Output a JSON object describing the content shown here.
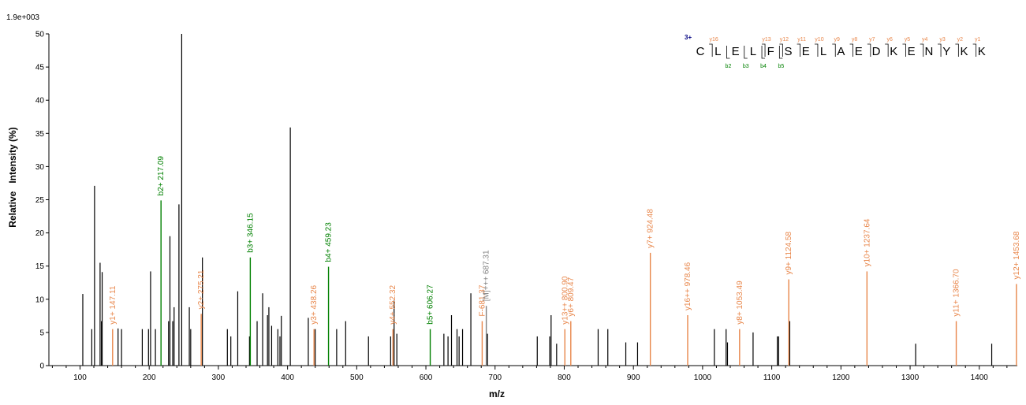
{
  "chart_data": {
    "type": "bar",
    "top_left_label": "1.9e+003",
    "xlabel": "m/z",
    "ylabel": "Relative   Intensity (%)",
    "xlim": [
      55,
      1455
    ],
    "ylim": [
      0,
      50
    ],
    "x_ticks": [
      100,
      200,
      300,
      400,
      500,
      600,
      700,
      800,
      900,
      1000,
      1100,
      1200,
      1300,
      1400
    ],
    "y_ticks": [
      0,
      5,
      10,
      15,
      20,
      25,
      30,
      35,
      40,
      45,
      50
    ],
    "colors": {
      "y_ion": "#e8864a",
      "b_ion": "#008000",
      "other": "#000000",
      "precursor": "#808080"
    },
    "unlabeled_peaks": [
      [
        104,
        10.8
      ],
      [
        117,
        5.5
      ],
      [
        121,
        27.1
      ],
      [
        129,
        15.5
      ],
      [
        131,
        6.7
      ],
      [
        132,
        14.1
      ],
      [
        155,
        5.6
      ],
      [
        160,
        5.5
      ],
      [
        190,
        5.5
      ],
      [
        199,
        5.5
      ],
      [
        202,
        14.2
      ],
      [
        209,
        5.5
      ],
      [
        228,
        6.7
      ],
      [
        230,
        19.5
      ],
      [
        234,
        6.7
      ],
      [
        236,
        8.8
      ],
      [
        243,
        24.3
      ],
      [
        247,
        50.0
      ],
      [
        258,
        8.8
      ],
      [
        260,
        5.5
      ],
      [
        313,
        5.5
      ],
      [
        318,
        4.4
      ],
      [
        328,
        11.2
      ],
      [
        345,
        4.4
      ],
      [
        356,
        6.7
      ],
      [
        364,
        10.9
      ],
      [
        371,
        7.6
      ],
      [
        373,
        8.8
      ],
      [
        377,
        6.0
      ],
      [
        386,
        5.5
      ],
      [
        389,
        4.4
      ],
      [
        391,
        7.5
      ],
      [
        404,
        35.9
      ],
      [
        430,
        7.2
      ],
      [
        440,
        5.5
      ],
      [
        471,
        5.5
      ],
      [
        484,
        6.7
      ],
      [
        517,
        4.4
      ],
      [
        549,
        4.4
      ],
      [
        558,
        4.8
      ],
      [
        626,
        4.8
      ],
      [
        632,
        4.4
      ],
      [
        637,
        7.6
      ],
      [
        645,
        5.5
      ],
      [
        648,
        4.4
      ],
      [
        653,
        5.5
      ],
      [
        665,
        10.9
      ],
      [
        689,
        4.8
      ],
      [
        761,
        4.4
      ],
      [
        779,
        4.4
      ],
      [
        781,
        7.6
      ],
      [
        789,
        3.3
      ],
      [
        849,
        5.5
      ],
      [
        863,
        5.5
      ],
      [
        889,
        3.5
      ],
      [
        906,
        3.5
      ],
      [
        1017,
        5.5
      ],
      [
        1034,
        5.5
      ],
      [
        1036,
        3.5
      ],
      [
        1073,
        5.0
      ],
      [
        1108,
        4.4
      ],
      [
        1110,
        4.4
      ],
      [
        1126,
        6.7
      ],
      [
        1308,
        3.3
      ],
      [
        1418,
        3.3
      ]
    ],
    "labeled_peaks": [
      {
        "x": 147.11,
        "y": 5.5,
        "label": "y1+ 147.11",
        "ion": "y"
      },
      {
        "x": 217.09,
        "y": 24.9,
        "label": "b2+ 217.09",
        "ion": "b"
      },
      {
        "x": 275.21,
        "y": 7.8,
        "label": "y2+ 275.21",
        "ion": "y",
        "extra_y": 16.3
      },
      {
        "x": 346.15,
        "y": 16.3,
        "label": "b3+ 346.15",
        "ion": "b"
      },
      {
        "x": 438.26,
        "y": 5.5,
        "label": "y3+ 438.26",
        "ion": "y"
      },
      {
        "x": 459.23,
        "y": 14.9,
        "label": "b4+ 459.23",
        "ion": "b"
      },
      {
        "x": 552.32,
        "y": 5.5,
        "label": "y4+ 552.32",
        "ion": "y",
        "extra_y": 9.8
      },
      {
        "x": 606.27,
        "y": 5.5,
        "label": "b5+ 606.27",
        "ion": "b"
      },
      {
        "x": 681.37,
        "y": 6.7,
        "label": "F-681.37",
        "ion": "y"
      },
      {
        "x": 687.31,
        "y": 9.0,
        "label": "[M]+++ 687.31",
        "ion": "other"
      },
      {
        "x": 800.9,
        "y": 5.5,
        "label": "y13++ 800.90",
        "ion": "y"
      },
      {
        "x": 809.47,
        "y": 6.7,
        "label": "y6+ 809.47",
        "ion": "y"
      },
      {
        "x": 924.48,
        "y": 17.0,
        "label": "y7+ 924.48",
        "ion": "y"
      },
      {
        "x": 978.46,
        "y": 7.6,
        "label": "y16++ 978.46",
        "ion": "y"
      },
      {
        "x": 1053.49,
        "y": 5.5,
        "label": "y8+ 1053.49",
        "ion": "y"
      },
      {
        "x": 1124.58,
        "y": 13.0,
        "label": "y9+ 1124.58",
        "ion": "y"
      },
      {
        "x": 1237.64,
        "y": 14.2,
        "label": "y10+ 1237.64",
        "ion": "y"
      },
      {
        "x": 1366.7,
        "y": 6.7,
        "label": "y11+ 1366.70",
        "ion": "y"
      },
      {
        "x": 1453.68,
        "y": 12.3,
        "label": "y12+ 1453.68",
        "ion": "y"
      }
    ],
    "sequence": {
      "charge": "3+",
      "residues": [
        "C",
        "L",
        "E",
        "L",
        "F",
        "S",
        "E",
        "L",
        "A",
        "E",
        "D",
        "K",
        "E",
        "N",
        "Y",
        "K",
        "K"
      ],
      "y_marks": [
        {
          "after": 1,
          "label": "y16"
        },
        {
          "after": 4,
          "label": "y13"
        },
        {
          "after": 5,
          "label": "y12"
        },
        {
          "after": 6,
          "label": "y11"
        },
        {
          "after": 7,
          "label": "y10"
        },
        {
          "after": 8,
          "label": "y9"
        },
        {
          "after": 9,
          "label": "y8"
        },
        {
          "after": 10,
          "label": "y7"
        },
        {
          "after": 11,
          "label": "y6"
        },
        {
          "after": 12,
          "label": "y5"
        },
        {
          "after": 13,
          "label": "y4"
        },
        {
          "after": 14,
          "label": "y3"
        },
        {
          "after": 15,
          "label": "y2"
        },
        {
          "after": 16,
          "label": "y1"
        }
      ],
      "b_marks": [
        {
          "after": 2,
          "label": "b2"
        },
        {
          "after": 3,
          "label": "b3"
        },
        {
          "after": 4,
          "label": "b4"
        },
        {
          "after": 5,
          "label": "b5"
        }
      ]
    }
  }
}
